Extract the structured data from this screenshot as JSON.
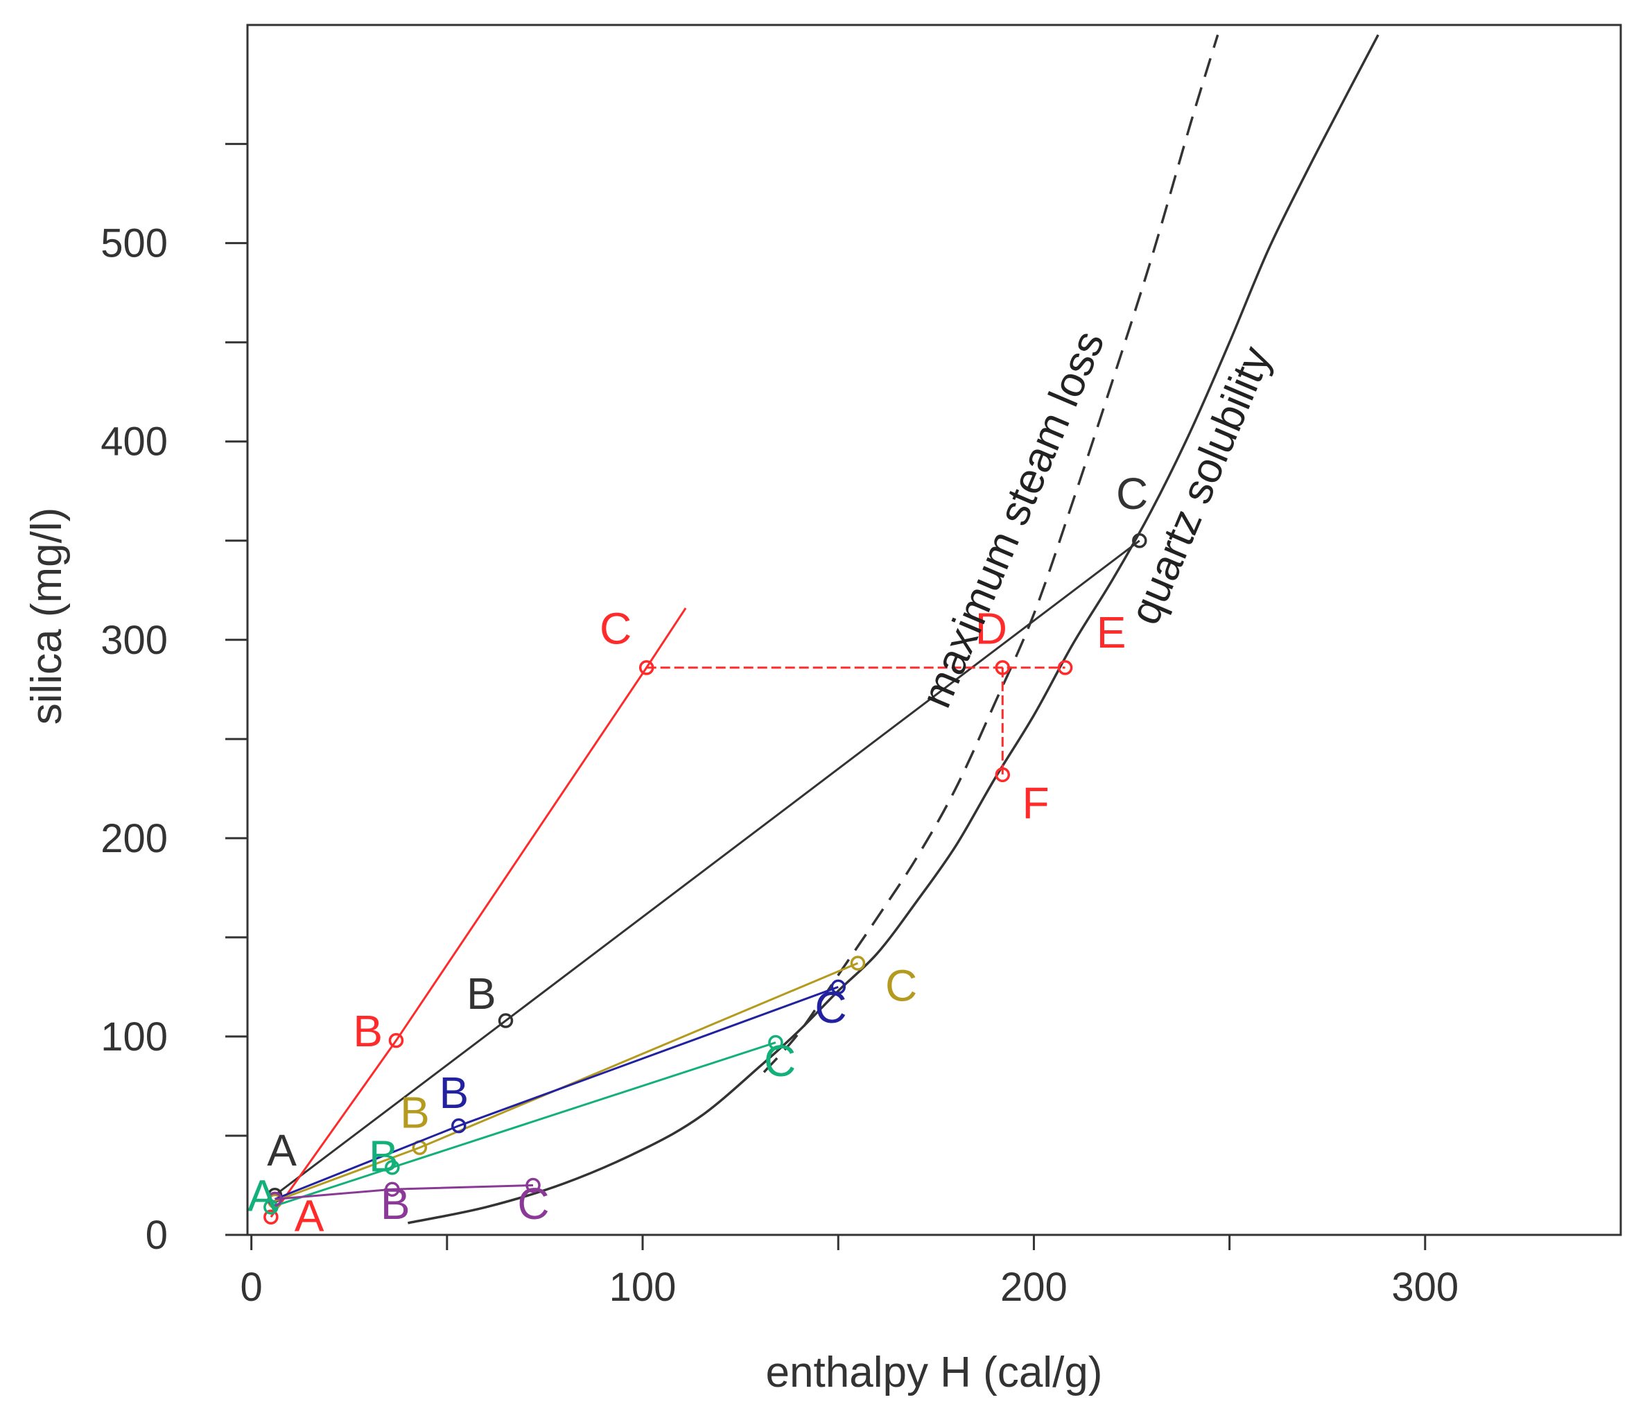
{
  "chart_data": {
    "type": "line",
    "title": "",
    "xlabel": "enthalpy H (cal/g)",
    "ylabel": "silica (mg/l)",
    "xlim": [
      -1,
      350
    ],
    "ylim": [
      0,
      610
    ],
    "x_ticks": [
      0,
      100,
      200,
      300
    ],
    "x_minor_ticks": [
      50,
      150,
      250
    ],
    "y_ticks": [
      0,
      100,
      200,
      300,
      400,
      500
    ],
    "y_minor_ticks": [
      50,
      150,
      250,
      350,
      450,
      550
    ],
    "x_tick_labels": [
      "0",
      "100",
      "200",
      "300"
    ],
    "y_tick_labels": [
      "0",
      "100",
      "200",
      "300",
      "400",
      "500"
    ],
    "colors": {
      "black": "#333333",
      "red": "#ff2a2a",
      "gold": "#b49a1e",
      "blue": "#2222a0",
      "green": "#13b07a",
      "purple": "#8a3a96"
    },
    "curves": [
      {
        "name": "quartz solubility",
        "color": "#333333",
        "dash": false,
        "x": [
          40,
          60,
          80,
          100,
          115,
          130,
          140,
          150,
          160,
          170,
          180,
          190,
          200,
          210,
          220,
          230,
          240,
          250,
          260,
          270,
          280,
          288
        ],
        "y": [
          6,
          14,
          26,
          43,
          60,
          85,
          103,
          123,
          142,
          168,
          196,
          230,
          262,
          298,
          330,
          365,
          405,
          450,
          497,
          537,
          575,
          605
        ]
      },
      {
        "name": "maximum steam loss",
        "color": "#333333",
        "dash": true,
        "x": [
          131,
          140,
          150,
          160,
          170,
          180,
          190,
          200,
          210,
          220,
          230,
          240,
          247
        ],
        "y": [
          82,
          102,
          131,
          160,
          190,
          225,
          268,
          313,
          370,
          430,
          492,
          560,
          605
        ]
      }
    ],
    "curve_labels": [
      {
        "text": "maximum steam loss",
        "x": 198,
        "y": 358,
        "angle": -67,
        "color": "#222222"
      },
      {
        "text": "quartz solubility",
        "x": 246,
        "y": 375,
        "angle": -67,
        "color": "#222222"
      }
    ],
    "series": [
      {
        "name": "black",
        "color": "#333333",
        "x": [
          6,
          65,
          227
        ],
        "y": [
          20,
          108,
          350
        ],
        "labels": [
          "A",
          "B",
          "C"
        ]
      },
      {
        "name": "red",
        "color": "#ff2a2a",
        "x": [
          5,
          37,
          101,
          111
        ],
        "y": [
          9,
          98,
          286,
          316
        ],
        "labels": [
          "A",
          "B",
          "C",
          ""
        ]
      },
      {
        "name": "red-ext",
        "color": "#ff2a2a",
        "x": [
          101,
          192,
          208
        ],
        "y": [
          286,
          286,
          286
        ],
        "labels": [
          "",
          "D",
          "E"
        ]
      },
      {
        "name": "red-drop",
        "color": "#ff2a2a",
        "x": [
          192,
          192
        ],
        "y": [
          286,
          232
        ],
        "labels": [
          "",
          "F"
        ]
      },
      {
        "name": "gold",
        "color": "#b49a1e",
        "x": [
          6,
          43,
          155
        ],
        "y": [
          17,
          44,
          137
        ],
        "labels": [
          "",
          "B",
          "C"
        ]
      },
      {
        "name": "blue",
        "color": "#2222a0",
        "x": [
          6,
          53,
          150
        ],
        "y": [
          18,
          55,
          125
        ],
        "labels": [
          "",
          "B",
          "C"
        ]
      },
      {
        "name": "green",
        "color": "#13b07a",
        "x": [
          5,
          36,
          134
        ],
        "y": [
          14,
          34,
          97
        ],
        "labels": [
          "A",
          "B",
          "C"
        ]
      },
      {
        "name": "purple",
        "color": "#8a3a96",
        "x": [
          6,
          36,
          72
        ],
        "y": [
          18,
          23,
          25
        ],
        "labels": [
          "",
          "B",
          "C"
        ]
      }
    ],
    "point_labels": [
      {
        "text": "A",
        "x": 4,
        "y": 35,
        "color": "#333333"
      },
      {
        "text": "B",
        "x": 55,
        "y": 114,
        "color": "#333333"
      },
      {
        "text": "C",
        "x": 221,
        "y": 366,
        "color": "#333333"
      },
      {
        "text": "A",
        "x": 11,
        "y": 2,
        "color": "#ff2a2a"
      },
      {
        "text": "B",
        "x": 26,
        "y": 95,
        "color": "#ff2a2a"
      },
      {
        "text": "C",
        "x": 89,
        "y": 298,
        "color": "#ff2a2a"
      },
      {
        "text": "D",
        "x": 185,
        "y": 298,
        "color": "#ff2a2a"
      },
      {
        "text": "E",
        "x": 216,
        "y": 296,
        "color": "#ff2a2a"
      },
      {
        "text": "F",
        "x": 197,
        "y": 210,
        "color": "#ff2a2a"
      },
      {
        "text": "B",
        "x": 38,
        "y": 54,
        "color": "#b49a1e"
      },
      {
        "text": "C",
        "x": 162,
        "y": 118,
        "color": "#b49a1e"
      },
      {
        "text": "B",
        "x": 48,
        "y": 64,
        "color": "#2222a0"
      },
      {
        "text": "C",
        "x": 144,
        "y": 107,
        "color": "#2222a0"
      },
      {
        "text": "A",
        "x": -1,
        "y": 12,
        "color": "#13b07a"
      },
      {
        "text": "B",
        "x": 30,
        "y": 32,
        "color": "#13b07a"
      },
      {
        "text": "C",
        "x": 131,
        "y": 80,
        "color": "#13b07a"
      },
      {
        "text": "B",
        "x": 33,
        "y": 8,
        "color": "#8a3a96"
      },
      {
        "text": "C",
        "x": 68,
        "y": 8,
        "color": "#8a3a96"
      }
    ]
  }
}
